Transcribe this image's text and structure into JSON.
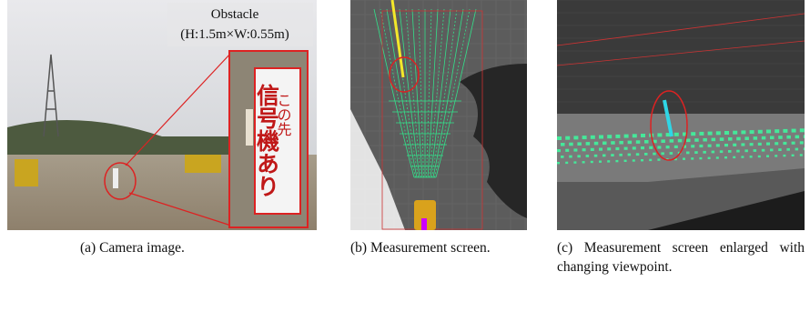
{
  "figures": [
    {
      "label": "(a)",
      "caption": "Camera image.",
      "annotation": {
        "title": "Obstacle",
        "size": "(H:1.5m×W:0.55m)"
      },
      "sign": {
        "top": "この先",
        "main": "信号機あり"
      }
    },
    {
      "label": "(b)",
      "caption": "Measurement screen."
    },
    {
      "label": "(c)",
      "caption": "Measurement screen enlarged with changing viewpoint."
    }
  ]
}
